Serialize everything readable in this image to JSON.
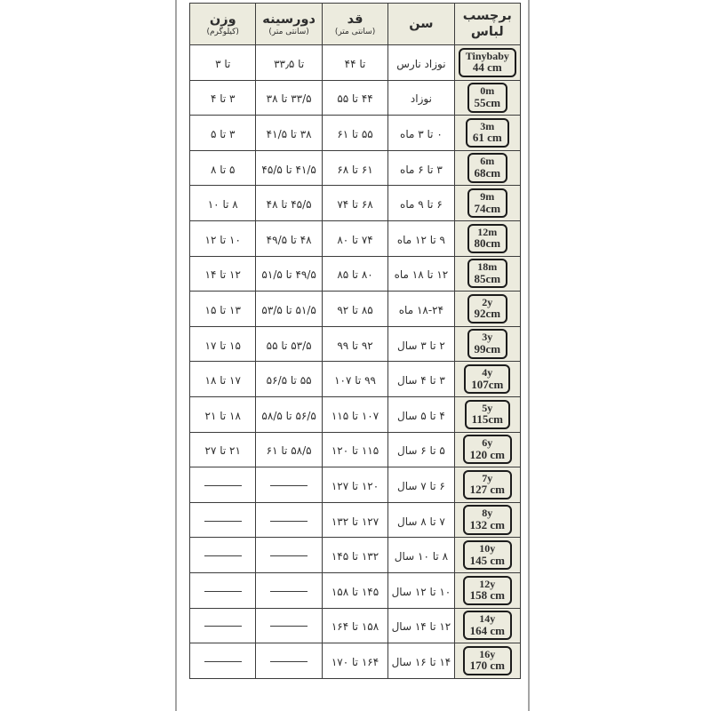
{
  "colors": {
    "header_bg": "#ecebde",
    "table_border": "#3c3c3c",
    "frame_line": "#a5a5a5",
    "text": "#2e2e2e"
  },
  "table": {
    "title": "",
    "direction": "rtl",
    "columns": [
      {
        "key": "label",
        "title": "برچسب لباس",
        "subtitle": ""
      },
      {
        "key": "age",
        "title": "سن",
        "subtitle": ""
      },
      {
        "key": "height",
        "title": "قد",
        "subtitle": "(سانتی متر)"
      },
      {
        "key": "chest",
        "title": "دورسینه",
        "subtitle": "(سانتی متر)"
      },
      {
        "key": "weight",
        "title": "وزن",
        "subtitle": "(کیلوگرم)"
      }
    ],
    "rows": [
      {
        "size": "Tinybaby",
        "cm": "44 cm",
        "age": "نوزاد نارس",
        "height": "تا ۴۴",
        "chest": "تا ۳۳٫۵",
        "weight": "تا ۳"
      },
      {
        "size": "0m",
        "cm": "55cm",
        "age": "نوزاد",
        "height": "۴۴ تا ۵۵",
        "chest": "۳۳/۵ تا ۳۸",
        "weight": "۳ تا ۴"
      },
      {
        "size": "3m",
        "cm": "61 cm",
        "age": "۰ تا ۳ ماه",
        "height": "۵۵ تا ۶۱",
        "chest": "۳۸ تا ۴۱/۵",
        "weight": "۳ تا ۵"
      },
      {
        "size": "6m",
        "cm": "68cm",
        "age": "۳ تا ۶ ماه",
        "height": "۶۱ تا ۶۸",
        "chest": "۴۱/۵ تا ۴۵/۵",
        "weight": "۵ تا ۸"
      },
      {
        "size": "9m",
        "cm": "74cm",
        "age": "۶ تا ۹ ماه",
        "height": "۶۸ تا ۷۴",
        "chest": "۴۵/۵ تا ۴۸",
        "weight": "۸ تا ۱۰"
      },
      {
        "size": "12m",
        "cm": "80cm",
        "age": "۹ تا ۱۲ ماه",
        "height": "۷۴ تا ۸۰",
        "chest": "۴۸ تا ۴۹/۵",
        "weight": "۱۰ تا ۱۲"
      },
      {
        "size": "18m",
        "cm": "85cm",
        "age": "۱۲ تا ۱۸ ماه",
        "height": "۸۰ تا ۸۵",
        "chest": "۴۹/۵ تا ۵۱/۵",
        "weight": "۱۲ تا ۱۴"
      },
      {
        "size": "2y",
        "cm": "92cm",
        "age": "۱۸-۲۴ ماه",
        "height": "۸۵ تا ۹۲",
        "chest": "۵۱/۵ تا ۵۳/۵",
        "weight": "۱۳ تا ۱۵"
      },
      {
        "size": "3y",
        "cm": "99cm",
        "age": "۲ تا ۳ سال",
        "height": "۹۲ تا ۹۹",
        "chest": "۵۳/۵ تا ۵۵",
        "weight": "۱۵ تا ۱۷"
      },
      {
        "size": "4y",
        "cm": "107cm",
        "age": "۳ تا ۴ سال",
        "height": "۹۹ تا ۱۰۷",
        "chest": "۵۵ تا ۵۶/۵",
        "weight": "۱۷ تا ۱۸"
      },
      {
        "size": "5y",
        "cm": "115cm",
        "age": "۴ تا ۵ سال",
        "height": "۱۰۷ تا ۱۱۵",
        "chest": "۵۶/۵ تا ۵۸/۵",
        "weight": "۱۸ تا ۲۱"
      },
      {
        "size": "6y",
        "cm": "120 cm",
        "age": "۵ تا ۶ سال",
        "height": "۱۱۵ تا ۱۲۰",
        "chest": "۵۸/۵ تا ۶۱",
        "weight": "۲۱ تا ۲۷"
      },
      {
        "size": "7y",
        "cm": "127 cm",
        "age": "۶ تا ۷ سال",
        "height": "۱۲۰ تا ۱۲۷",
        "chest": "",
        "weight": ""
      },
      {
        "size": "8y",
        "cm": "132 cm",
        "age": "۷ تا ۸ سال",
        "height": "۱۲۷ تا ۱۳۲",
        "chest": "",
        "weight": ""
      },
      {
        "size": "10y",
        "cm": "145 cm",
        "age": "۸ تا ۱۰ سال",
        "height": "۱۳۲ تا ۱۴۵",
        "chest": "",
        "weight": ""
      },
      {
        "size": "12y",
        "cm": "158 cm",
        "age": "۱۰ تا ۱۲ سال",
        "height": "۱۴۵ تا ۱۵۸",
        "chest": "",
        "weight": ""
      },
      {
        "size": "14y",
        "cm": "164 cm",
        "age": "۱۲ تا ۱۴ سال",
        "height": "۱۵۸ تا ۱۶۴",
        "chest": "",
        "weight": ""
      },
      {
        "size": "16y",
        "cm": "170 cm",
        "age": "۱۴ تا ۱۶ سال",
        "height": "۱۶۴ تا ۱۷۰",
        "chest": "",
        "weight": ""
      }
    ]
  }
}
